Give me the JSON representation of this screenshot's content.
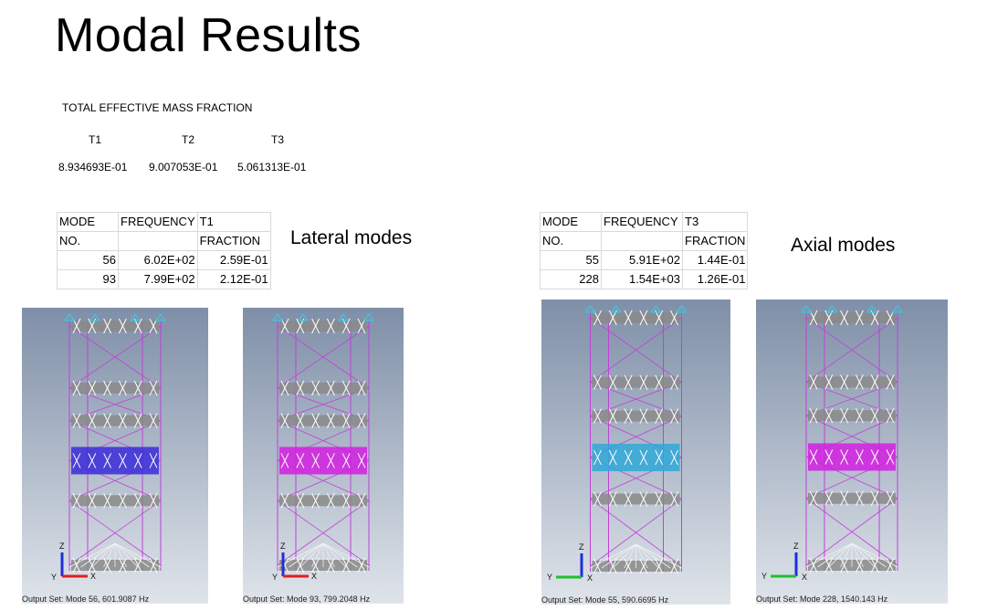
{
  "page": {
    "title": "Modal Results"
  },
  "mass_fraction": {
    "heading": "TOTAL EFFECTIVE MASS FRACTION",
    "columns": [
      {
        "label": "T1",
        "value": "8.934693E-01"
      },
      {
        "label": "T2",
        "value": "9.007053E-01"
      },
      {
        "label": "T3",
        "value": "5.061313E-01"
      }
    ]
  },
  "lateral_table": {
    "header1": [
      "MODE",
      "FREQUENCY",
      "T1"
    ],
    "header2": [
      "NO.",
      "",
      "FRACTION"
    ],
    "rows": [
      [
        "56",
        "6.02E+02",
        "2.59E-01"
      ],
      [
        "93",
        "7.99E+02",
        "2.12E-01"
      ]
    ]
  },
  "axial_table": {
    "header1": [
      "MODE",
      "FREQUENCY",
      "T3"
    ],
    "header2": [
      "NO.",
      "",
      "FRACTION"
    ],
    "rows": [
      [
        "55",
        "5.91E+02",
        "1.44E-01"
      ],
      [
        "228",
        "1.54E+03",
        "1.26E-01"
      ]
    ]
  },
  "captions": {
    "lateral": "Lateral modes",
    "axial": "Axial modes"
  },
  "panels": [
    {
      "output": "Output Set: Mode 56, 601.9087 Hz",
      "axis_h": "X",
      "axis_v": "Z",
      "axis_o": "Y",
      "highlight": "#3a2bd8"
    },
    {
      "output": "Output Set: Mode 93, 799.2048 Hz",
      "axis_h": "X",
      "axis_v": "Z",
      "axis_o": "Y",
      "highlight": "#d21ee0"
    },
    {
      "output": "Output Set: Mode 55, 590.6695 Hz",
      "axis_h": "Y",
      "axis_v": "Z",
      "axis_o": "X",
      "highlight": "#2fa8d8"
    },
    {
      "output": "Output Set: Mode 228, 1540.143 Hz",
      "axis_h": "Y",
      "axis_v": "Z",
      "axis_o": "X",
      "highlight": "#d21ee0"
    }
  ]
}
